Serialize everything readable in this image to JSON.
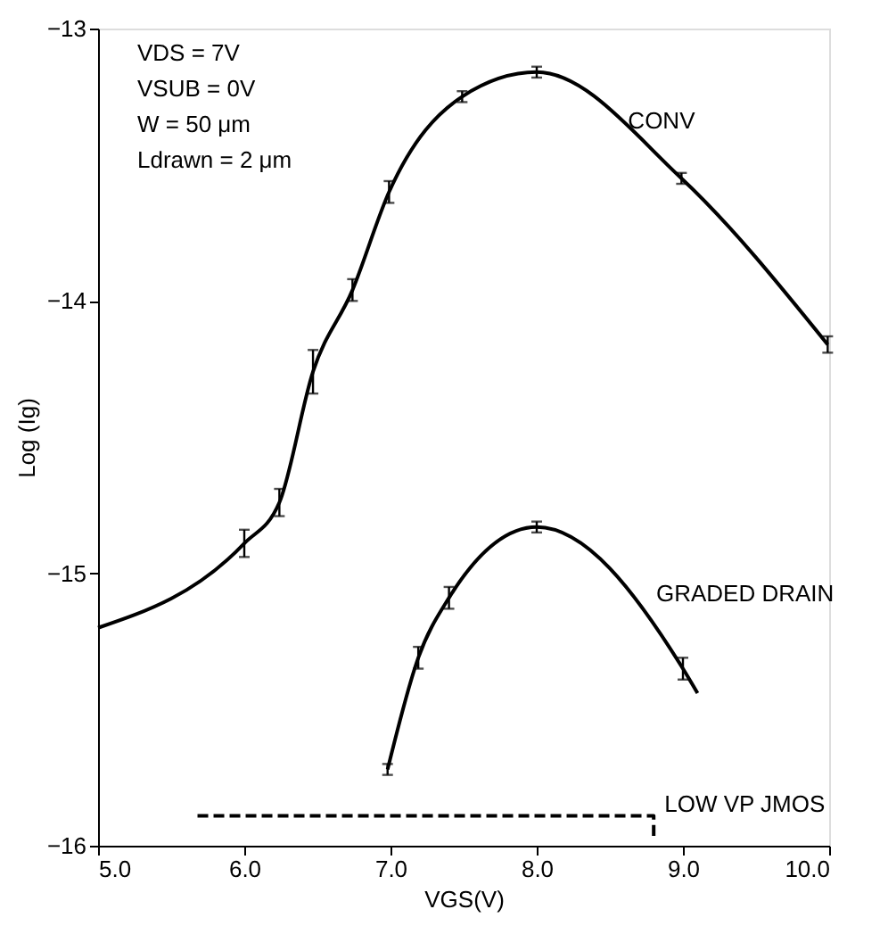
{
  "chart_data": {
    "type": "line",
    "xlabel": "VGS(V)",
    "ylabel": "Log (Ig)",
    "xlim": [
      5.0,
      10.0
    ],
    "ylim": [
      -16,
      -13
    ],
    "xticks": [
      {
        "value": 5,
        "label": "5.0"
      },
      {
        "value": 6,
        "label": "6.0"
      },
      {
        "value": 7,
        "label": "7.0"
      },
      {
        "value": 8,
        "label": "8.0"
      },
      {
        "value": 9,
        "label": "9.0"
      },
      {
        "value": 10,
        "label": "10.0"
      }
    ],
    "yticks": [
      -16,
      -15,
      -14,
      -13
    ],
    "grid": false,
    "legend": false,
    "marker": "none",
    "annotations": [
      "VDS = 7V",
      "VSUB = 0V",
      "W = 50 μm",
      "Ldrawn = 2 μm"
    ],
    "series": [
      {
        "name": "CONV",
        "color": "#000000",
        "line_style": "solid",
        "x": [
          5.0,
          6.0,
          6.24,
          6.47,
          6.74,
          6.99,
          7.49,
          8.0,
          8.99,
          9.99
        ],
        "values": [
          -15.2,
          -14.89,
          -14.74,
          -14.26,
          -13.96,
          -13.6,
          -13.25,
          -13.16,
          -13.55,
          -14.16
        ],
        "errors": [
          null,
          0.05,
          0.05,
          0.08,
          0.04,
          0.04,
          0.02,
          0.02,
          0.02,
          0.03
        ]
      },
      {
        "name": "GRADED DRAIN",
        "color": "#000000",
        "line_style": "solid",
        "x": [
          6.98,
          7.19,
          7.4,
          8.0,
          9.0,
          9.1
        ],
        "values": [
          -15.72,
          -15.31,
          -15.09,
          -14.83,
          -15.35,
          -15.44
        ],
        "errors": [
          0.02,
          0.04,
          0.04,
          0.02,
          0.04,
          null
        ]
      },
      {
        "name": "LOW VP JMOS",
        "color": "#000000",
        "line_style": "dashed",
        "x": [
          5.68,
          8.8,
          8.8
        ],
        "values": [
          -15.89,
          -15.89,
          -15.97
        ]
      }
    ]
  }
}
